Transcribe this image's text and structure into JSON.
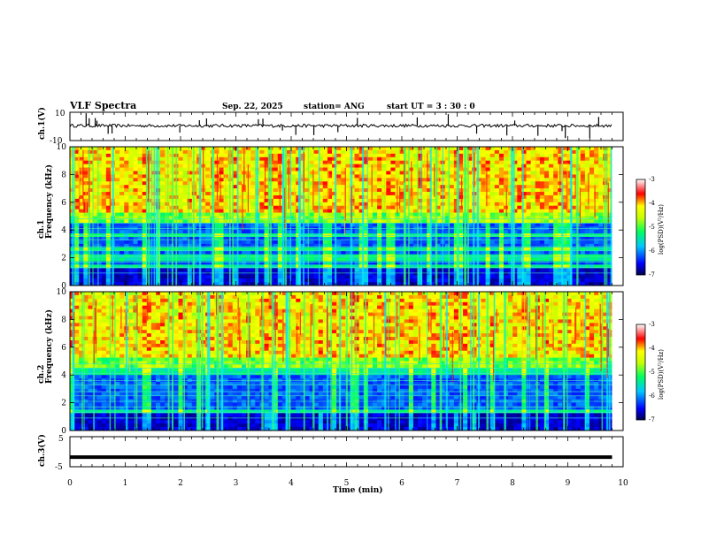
{
  "header": {
    "title": "VLF Spectra",
    "date": "Sep. 22, 2025",
    "station": "station= ANG",
    "start": "start  UT =   3  : 30 : 0"
  },
  "chart_data": [
    {
      "type": "line",
      "name": "ch1-waveform",
      "ylabel": "ch.1(V)",
      "ylim": [
        -10,
        10
      ],
      "yticks": [
        "10",
        "-10"
      ],
      "baseline": 0.5,
      "xlim": [
        0,
        10
      ]
    },
    {
      "type": "heatmap",
      "name": "ch1-spectrogram",
      "ylabel": "ch.1\nFrequency (kHz)",
      "ylabel_lines": [
        "ch.1",
        "Frequency (kHz)"
      ],
      "ylim": [
        0,
        10
      ],
      "yticks": [
        "0",
        "2",
        "4",
        "6",
        "8",
        "10"
      ],
      "xlim": [
        0,
        9.8
      ],
      "colorbar": {
        "label": "log(PSD)(V²/Hz)",
        "ticks": [
          "-3",
          "-4",
          "-5",
          "-6",
          "-7"
        ],
        "range": [
          -7,
          -3
        ]
      }
    },
    {
      "type": "heatmap",
      "name": "ch2-spectrogram",
      "ylabel": "ch.2\nFrequency (kHz)",
      "ylabel_lines": [
        "ch.2",
        "Frequency (kHz)"
      ],
      "ylim": [
        0,
        10
      ],
      "yticks": [
        "0",
        "2",
        "4",
        "6",
        "8",
        "10"
      ],
      "xlim": [
        0,
        9.8
      ],
      "colorbar": {
        "label": "log(PSD)(V²/Hz)",
        "ticks": [
          "-3",
          "-4",
          "-5",
          "-6",
          "-7"
        ],
        "range": [
          -7,
          -3
        ]
      }
    },
    {
      "type": "line",
      "name": "ch3-level",
      "ylabel": "ch.3(V)",
      "ylim": [
        -5,
        5
      ],
      "yticks": [
        "5",
        "0",
        "-5"
      ],
      "value": -1.8,
      "xlim": [
        0,
        9.8
      ]
    }
  ],
  "xaxis": {
    "label": "Time (min)",
    "ticks": [
      "0",
      "1",
      "2",
      "3",
      "4",
      "5",
      "6",
      "7",
      "8",
      "9",
      "10"
    ],
    "range": [
      0,
      10
    ]
  },
  "colors": {
    "low": "#000080",
    "blue": "#0000ff",
    "cyan": "#00c8ff",
    "green": "#00ff00",
    "yellow": "#ffff00",
    "red": "#ff0000",
    "high": "#ffffff"
  }
}
